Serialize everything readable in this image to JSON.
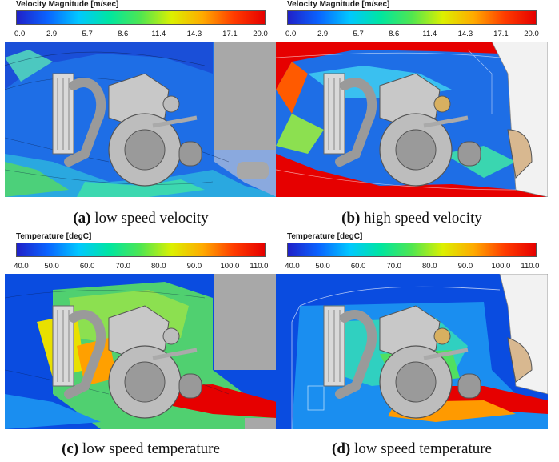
{
  "panels": [
    {
      "id": "a",
      "legend_title": "Velocity Magnitude [m/sec]",
      "ticks": [
        "0.0",
        "2.9",
        "5.7",
        "8.6",
        "11.4",
        "14.3",
        "17.1",
        "20.0"
      ],
      "caption_letter": "(a)",
      "caption_text": " low speed velocity"
    },
    {
      "id": "b",
      "legend_title": "Velocity Magnitude [m/sec]",
      "ticks": [
        "0.0",
        "2.9",
        "5.7",
        "8.6",
        "11.4",
        "14.3",
        "17.1",
        "20.0"
      ],
      "caption_letter": "(b)",
      "caption_text": " high speed velocity"
    },
    {
      "id": "c",
      "legend_title": "Temperature [degC]",
      "ticks": [
        "40.0",
        "50.0",
        "60.0",
        "70.0",
        "80.0",
        "90.0",
        "100.0",
        "110.0"
      ],
      "caption_letter": "(c)",
      "caption_text": " low speed temperature"
    },
    {
      "id": "d",
      "legend_title": "Temperature [degC]",
      "ticks": [
        "40.0",
        "50.0",
        "60.0",
        "70.0",
        "80.0",
        "90.0",
        "100.0",
        "110.0"
      ],
      "caption_letter": "(d)",
      "caption_text": " low speed temperature"
    }
  ],
  "colormap": [
    "#2020c8",
    "#0a64ff",
    "#00c8ff",
    "#00e6a0",
    "#50e650",
    "#dcf000",
    "#ffaa00",
    "#ff3c00",
    "#e60000"
  ]
}
